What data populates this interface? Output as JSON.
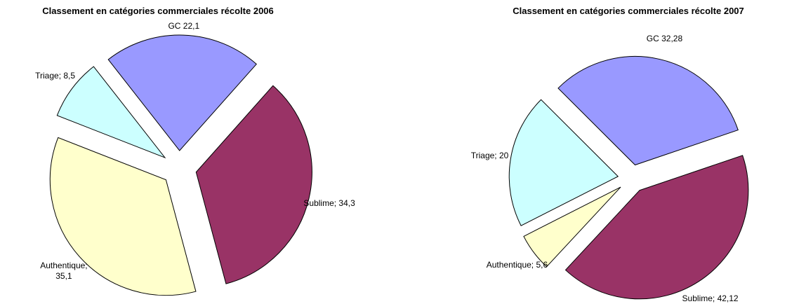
{
  "chart_data": [
    {
      "type": "pie",
      "title": "Classement en catégories commerciales récolte 2006",
      "categories": [
        "GC",
        "Sublime",
        "Authentique",
        "Triage"
      ],
      "values": [
        22.1,
        34.3,
        35.1,
        8.5
      ],
      "value_labels": [
        "GC 22,1",
        "Sublime; 34,3",
        "Authentique; 35,1",
        "Triage; 8,5"
      ],
      "colors": [
        "#9999ff",
        "#993366",
        "#ffffcc",
        "#ccffff"
      ]
    },
    {
      "type": "pie",
      "title": "Classement en catégories commerciales récolte 2007",
      "categories": [
        "GC",
        "Sublime",
        "Authentique",
        "Triage"
      ],
      "values": [
        32.28,
        42.12,
        5.6,
        20
      ],
      "value_labels": [
        "GC 32,28",
        "Sublime; 42,12",
        "Authentique; 5,6",
        "Triage; 20"
      ],
      "colors": [
        "#9999ff",
        "#993366",
        "#ffffcc",
        "#ccffff"
      ]
    }
  ]
}
